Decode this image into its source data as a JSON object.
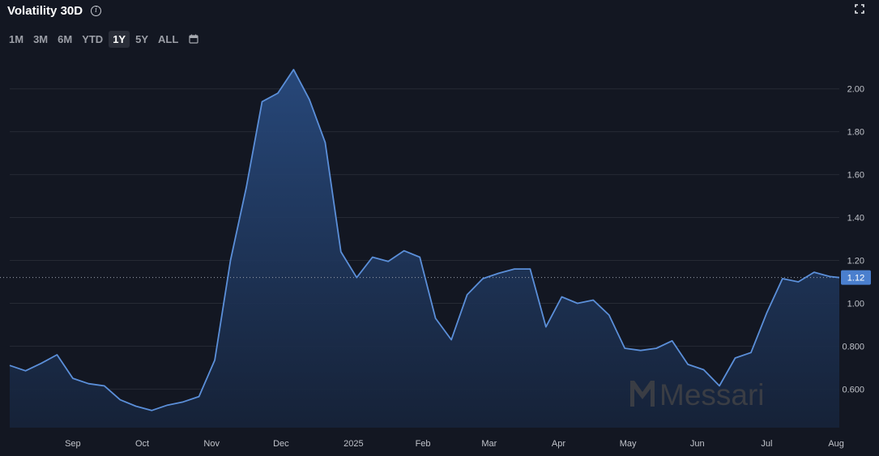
{
  "header": {
    "title": "Volatility 30D",
    "info_icon": "info-icon",
    "expand_icon": "expand-icon"
  },
  "ranges": {
    "items": [
      "1M",
      "3M",
      "6M",
      "YTD",
      "1Y",
      "5Y",
      "ALL"
    ],
    "active": "1Y",
    "calendar_icon": "calendar-icon"
  },
  "colors": {
    "background": "#131722",
    "line": "#5b8fd9",
    "fill_top": "#284a7e",
    "grid": "#262a34",
    "badge": "#4a7fce"
  },
  "watermark": {
    "text": "Messari"
  },
  "last_value_label": "1.12",
  "chart_data": {
    "type": "area",
    "title": "Volatility 30D",
    "xlabel": "",
    "ylabel": "",
    "grid": true,
    "ylim": [
      0.42,
      2.15
    ],
    "y_ticks": [
      {
        "value": 0.6,
        "label": "0.600"
      },
      {
        "value": 0.8,
        "label": "0.800"
      },
      {
        "value": 1.0,
        "label": "1.00"
      },
      {
        "value": 1.2,
        "label": "1.20"
      },
      {
        "value": 1.4,
        "label": "1.40"
      },
      {
        "value": 1.6,
        "label": "1.60"
      },
      {
        "value": 1.8,
        "label": "1.80"
      },
      {
        "value": 2.0,
        "label": "2.00"
      }
    ],
    "x_ticks": [
      {
        "label": "Sep",
        "index": 10
      },
      {
        "label": "Oct",
        "index": 21
      },
      {
        "label": "Nov",
        "index": 32
      },
      {
        "label": "Dec",
        "index": 43
      },
      {
        "label": "2025",
        "index": 54.5
      },
      {
        "label": "Feb",
        "index": 65.5
      },
      {
        "label": "Mar",
        "index": 76
      },
      {
        "label": "Apr",
        "index": 87
      },
      {
        "label": "May",
        "index": 98
      },
      {
        "label": "Jun",
        "index": 109
      },
      {
        "label": "Jul",
        "index": 120
      },
      {
        "label": "Aug",
        "index": 131
      }
    ],
    "last_value": 1.12,
    "series": [
      {
        "points": [
          [
            0,
            0.71
          ],
          [
            2.5,
            0.685
          ],
          [
            5,
            0.72
          ],
          [
            7.5,
            0.76
          ],
          [
            10,
            0.65
          ],
          [
            12.5,
            0.625
          ],
          [
            15,
            0.615
          ],
          [
            17.5,
            0.55
          ],
          [
            20,
            0.52
          ],
          [
            22.5,
            0.5
          ],
          [
            25,
            0.525
          ],
          [
            27.5,
            0.54
          ],
          [
            30,
            0.565
          ],
          [
            32.5,
            0.735
          ],
          [
            35,
            1.2
          ],
          [
            37.5,
            1.54
          ],
          [
            40,
            1.94
          ],
          [
            42.5,
            1.98
          ],
          [
            45,
            2.09
          ],
          [
            47.5,
            1.95
          ],
          [
            50,
            1.75
          ],
          [
            52.5,
            1.24
          ],
          [
            55,
            1.12
          ],
          [
            57.5,
            1.215
          ],
          [
            60,
            1.195
          ],
          [
            62.5,
            1.245
          ],
          [
            65,
            1.215
          ],
          [
            67.5,
            0.93
          ],
          [
            70,
            0.83
          ],
          [
            72.5,
            1.04
          ],
          [
            75,
            1.115
          ],
          [
            77.5,
            1.14
          ],
          [
            80,
            1.16
          ],
          [
            82.5,
            1.16
          ],
          [
            85,
            0.89
          ],
          [
            87.5,
            1.03
          ],
          [
            90,
            1.0
          ],
          [
            92.5,
            1.015
          ],
          [
            95,
            0.945
          ],
          [
            97.5,
            0.79
          ],
          [
            100,
            0.78
          ],
          [
            102.5,
            0.79
          ],
          [
            105,
            0.825
          ],
          [
            107.5,
            0.715
          ],
          [
            110,
            0.69
          ],
          [
            112.5,
            0.615
          ],
          [
            115,
            0.745
          ],
          [
            117.5,
            0.77
          ],
          [
            120,
            0.955
          ],
          [
            122.5,
            1.115
          ],
          [
            125,
            1.1
          ],
          [
            127.5,
            1.145
          ],
          [
            130,
            1.125
          ],
          [
            131.5,
            1.12
          ]
        ]
      }
    ]
  }
}
